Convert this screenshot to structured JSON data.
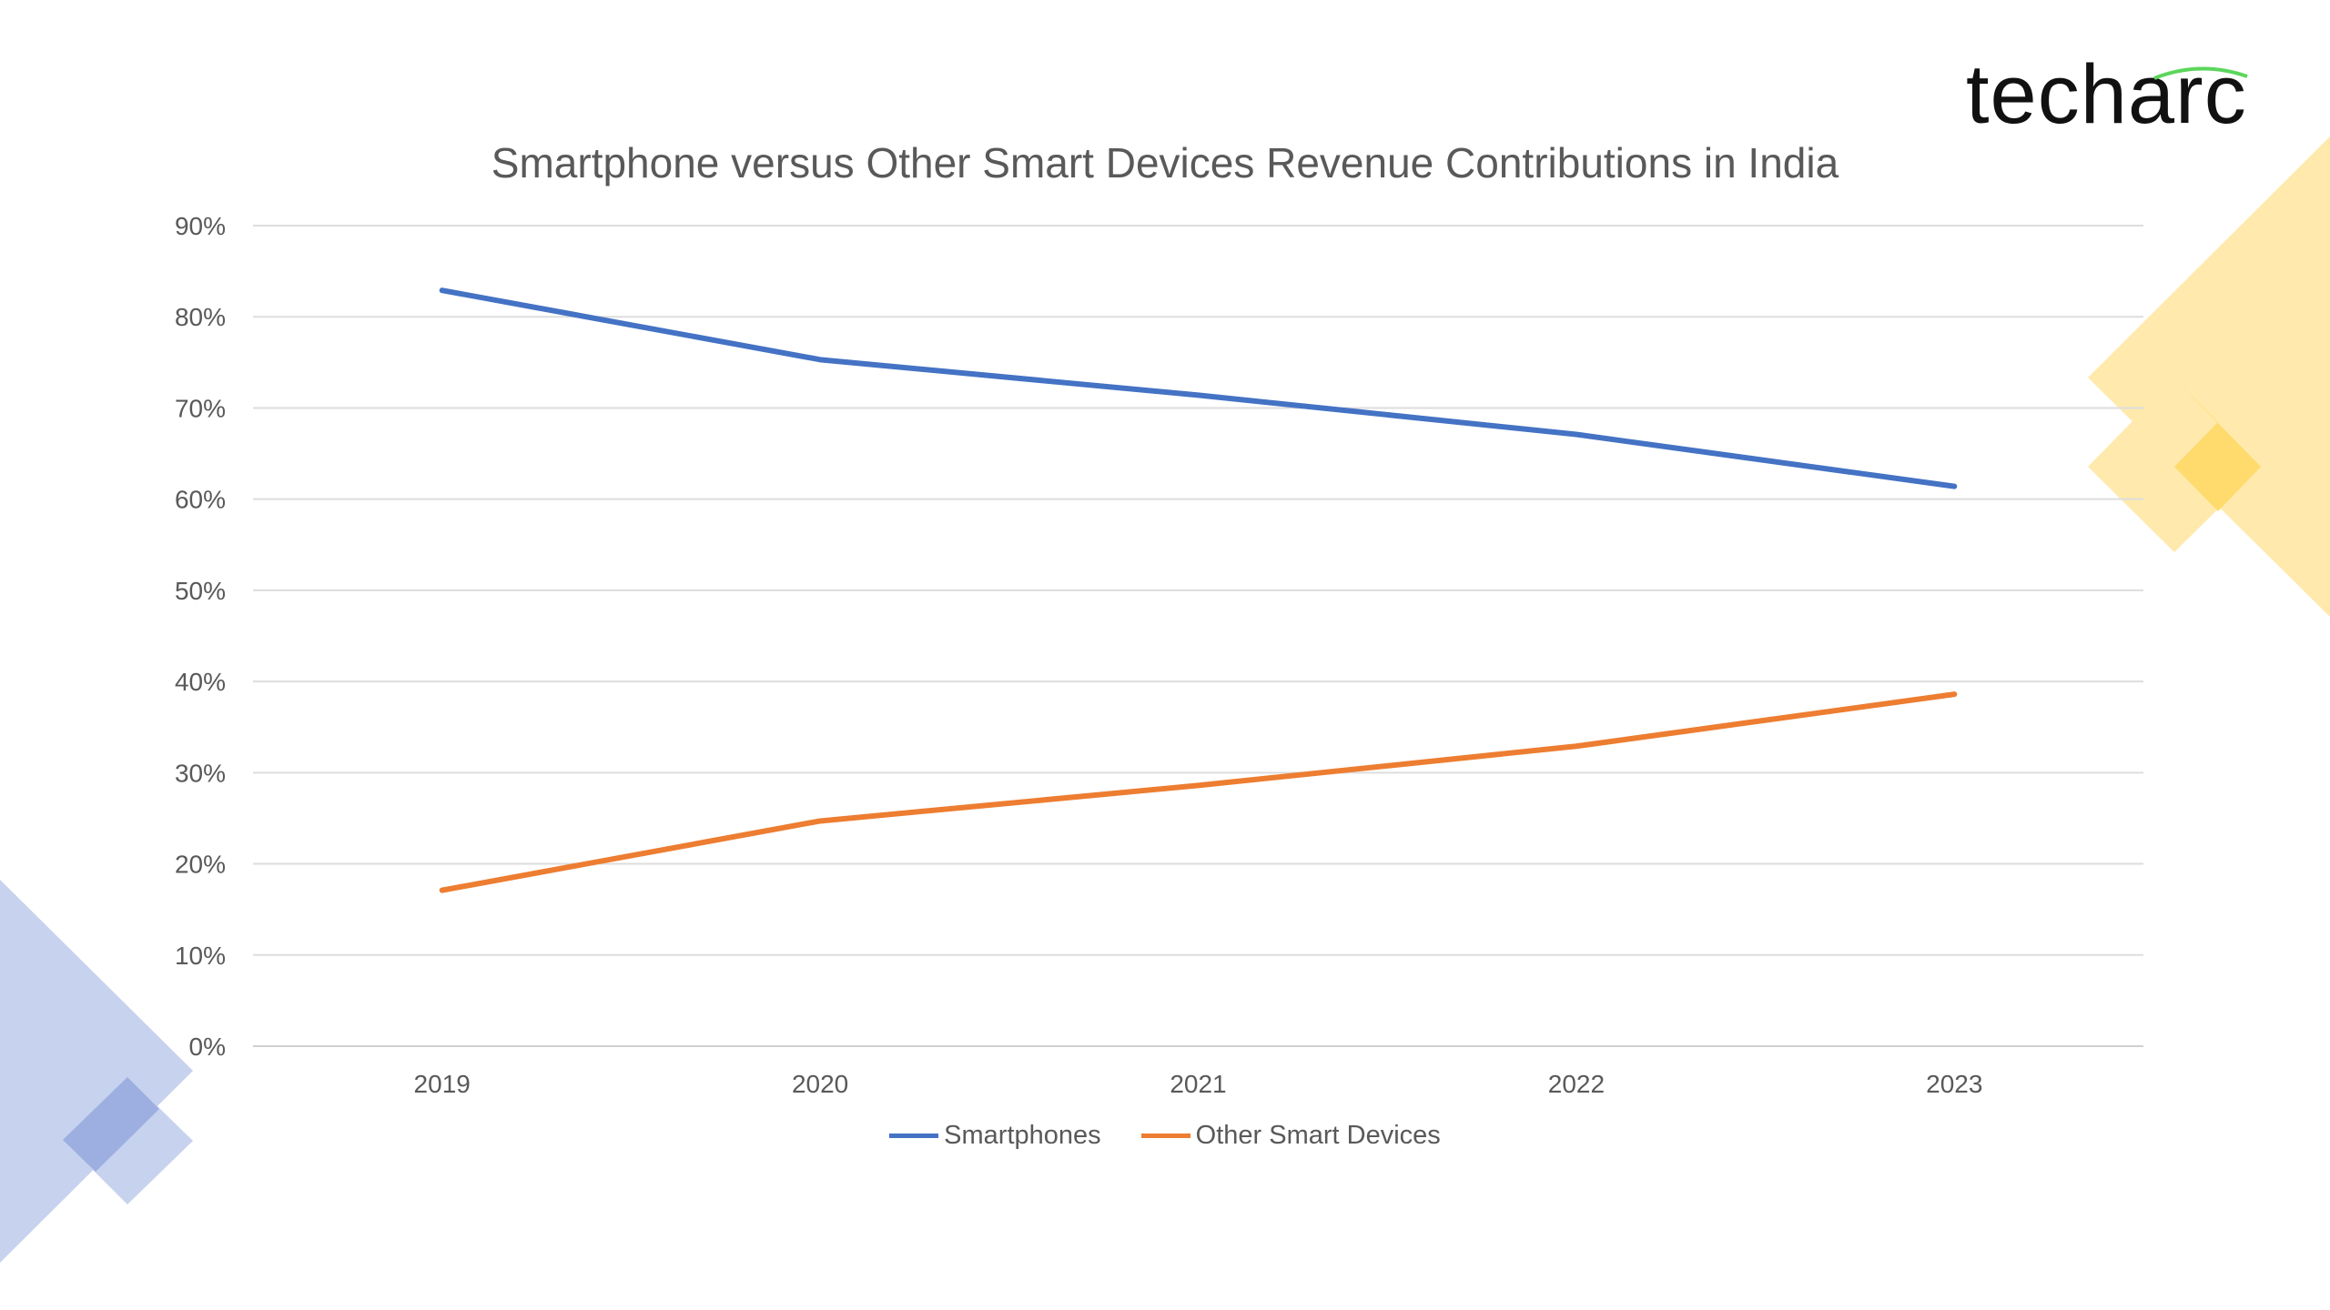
{
  "logo": {
    "text": "techarc",
    "accent_color": "#5BD65B"
  },
  "chart_data": {
    "type": "line",
    "title": "Smartphone versus Other Smart Devices Revenue Contributions in India",
    "xlabel": "",
    "ylabel": "",
    "categories": [
      "2019",
      "2020",
      "2021",
      "2022",
      "2023"
    ],
    "series": [
      {
        "name": "Smartphones",
        "color": "#4472C4",
        "values": [
          82.9,
          75.3,
          71.4,
          67.1,
          61.4
        ]
      },
      {
        "name": "Other Smart Devices",
        "color": "#ED7D31",
        "values": [
          17.1,
          24.7,
          28.6,
          32.9,
          38.6
        ]
      }
    ],
    "ylim": [
      0,
      90
    ],
    "yticks": [
      "0%",
      "10%",
      "20%",
      "30%",
      "40%",
      "50%",
      "60%",
      "70%",
      "80%",
      "90%"
    ],
    "grid": true,
    "legend_position": "bottom"
  }
}
